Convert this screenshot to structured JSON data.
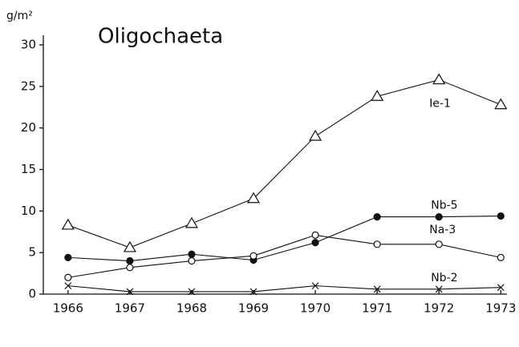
{
  "chart_data": {
    "type": "line",
    "title": "Oligochaeta",
    "y_label": "g/m²",
    "x": [
      1966,
      1967,
      1968,
      1969,
      1970,
      1971,
      1972,
      1973
    ],
    "xlim": [
      1965.6,
      1973.1
    ],
    "xticks": [
      1966,
      1967,
      1968,
      1969,
      1970,
      1971,
      1972,
      1973
    ],
    "ylim": [
      0,
      30
    ],
    "yticks": [
      0,
      5,
      10,
      15,
      20,
      25,
      30
    ],
    "grid": false,
    "series": [
      {
        "name": "Ie-1",
        "color": "#111111",
        "marker": "triangle",
        "values": [
          8.3,
          5.6,
          8.5,
          11.5,
          19,
          23.8,
          25.8,
          22.8
        ]
      },
      {
        "name": "Nb-5",
        "color": "#111111",
        "marker": "filled-circle",
        "values": [
          4.4,
          4.0,
          4.8,
          4.1,
          6.2,
          9.3,
          9.3,
          9.4
        ]
      },
      {
        "name": "Na-3",
        "color": "#111111",
        "marker": "circle",
        "values": [
          2.0,
          3.2,
          4.0,
          4.6,
          7.1,
          6.0,
          6.0,
          4.4
        ]
      },
      {
        "name": "Nb-2",
        "color": "#111111",
        "marker": "cross",
        "values": [
          1.0,
          0.3,
          0.3,
          0.3,
          1.0,
          0.6,
          0.6,
          0.8
        ]
      }
    ]
  }
}
